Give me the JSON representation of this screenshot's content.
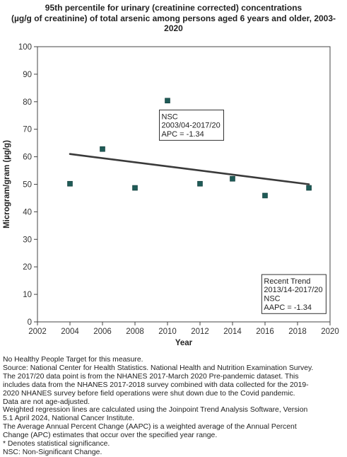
{
  "title_lines": [
    "95th percentile for urinary (creatinine corrected) concentrations",
    "(µg/g of creatinine) of total arsenic among persons aged 6 years and older, 2003-",
    "2020"
  ],
  "chart_data": {
    "type": "scatter",
    "title": "95th percentile for urinary (creatinine corrected) concentrations (µg/g of creatinine) of total arsenic among persons aged 6 years and older, 2003-2020",
    "xlabel": "Year",
    "ylabel": "Microgram/gram (µg/g)",
    "xlim": [
      2002,
      2020
    ],
    "ylim": [
      0,
      100
    ],
    "x_ticks": [
      2002,
      2004,
      2006,
      2008,
      2010,
      2012,
      2014,
      2016,
      2018,
      2020
    ],
    "y_ticks": [
      0,
      10,
      20,
      30,
      40,
      50,
      60,
      70,
      80,
      90,
      100
    ],
    "grid": false,
    "marker_color": "#1f5b57",
    "line_color": "#3a3a3a",
    "points": [
      {
        "x": 2004,
        "y": 50.2
      },
      {
        "x": 2006,
        "y": 62.8
      },
      {
        "x": 2008,
        "y": 48.7
      },
      {
        "x": 2010,
        "y": 80.4
      },
      {
        "x": 2012,
        "y": 50.2
      },
      {
        "x": 2014,
        "y": 52.0
      },
      {
        "x": 2016,
        "y": 45.9
      },
      {
        "x": 2018.7,
        "y": 48.7
      }
    ],
    "trend_line": {
      "x": [
        2004,
        2018.7
      ],
      "y": [
        61.0,
        50.0
      ]
    },
    "annotations": [
      {
        "lines": [
          "NSC",
          "2003/04-2017/20",
          "APC = -1.34"
        ],
        "anchor_x": 2009.5,
        "anchor_y": 77
      },
      {
        "lines": [
          "Recent Trend",
          "2013/14-2017/20",
          "NSC",
          "AAPC = -1.34"
        ],
        "anchor_x": 2015.8,
        "anchor_y": 17.2
      }
    ]
  },
  "notes": [
    "No Healthy People Target for this measure.",
    "Source: National Center for Health Statistics. National Health and Nutrition Examination Survey.",
    "The 2017/20 data point is from the NHANES 2017-March 2020 Pre-pandemic dataset. This",
    "includes data from the NHANES 2017-2018 survey combined with data collected for the 2019-",
    "2020 NHANES survey before field operations were shut down due to the Covid pandemic.",
    "Data are not age-adjusted.",
    "Weighted regression lines are calculated using the Joinpoint Trend Analysis Software, Version",
    "5.1 April 2024, National Cancer Institute.",
    "The Average Annual Percent Change (AAPC) is a weighted average of the Annual Percent",
    "Change (APC) estimates that occur over the specified year range.",
    "* Denotes statistical significance.",
    "NSC: Non-Significant Change."
  ]
}
